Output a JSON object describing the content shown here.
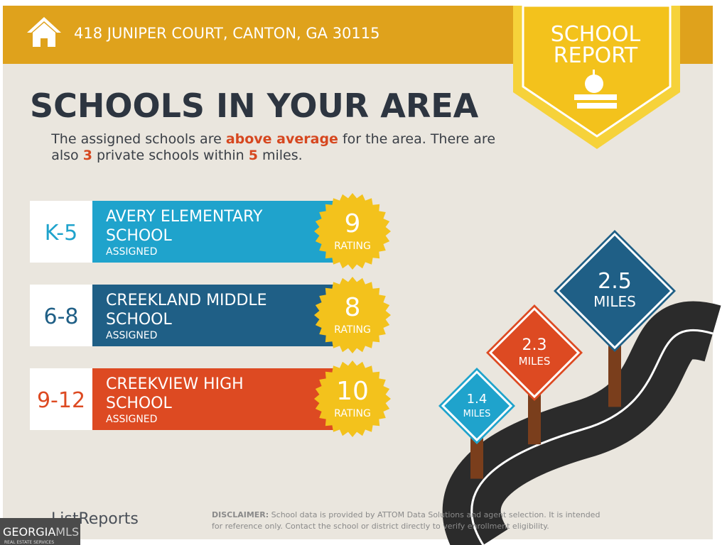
{
  "header": {
    "address": "418 JUNIPER COURT, CANTON, GA 30115"
  },
  "badge": {
    "line1": "SCHOOL",
    "line2": "REPORT"
  },
  "title": "SCHOOLS IN YOUR AREA",
  "subtitle": {
    "line1": [
      "The assigned schools are ",
      "above average",
      " for the area. There are"
    ],
    "line2": [
      "also ",
      "3",
      " private schools within ",
      "5",
      " miles."
    ]
  },
  "schools": [
    {
      "grades": "K-5",
      "name_lines": [
        "AVERY ELEMENTARY",
        "SCHOOL"
      ],
      "status": "ASSIGNED",
      "rating": 9,
      "rating_label": "RATING"
    },
    {
      "grades": "6-8",
      "name_lines": [
        "CREEKLAND MIDDLE",
        "SCHOOL"
      ],
      "status": "ASSIGNED",
      "rating": 8,
      "rating_label": "RATING"
    },
    {
      "grades": "9-12",
      "name_lines": [
        "CREEKVIEW HIGH",
        "SCHOOL"
      ],
      "status": "ASSIGNED",
      "rating": 10,
      "rating_label": "RATING"
    }
  ],
  "distances": [
    {
      "value": 2.5,
      "unit": "MILES"
    },
    {
      "value": 2.3,
      "unit": "MILES"
    },
    {
      "value": 1.4,
      "unit": "MILES"
    }
  ],
  "footer": {
    "logo": "ListReports",
    "disclaimer_label": "DISCLAIMER:",
    "disclaimer_lines": [
      " School data is provided by ATTOM Data Solutions and agent selection. It is intended",
      "for reference only. Contact the school or district directly to verify enrollment eligibility."
    ]
  },
  "watermark": {
    "brand": "GEORGIA",
    "brand_accent": "MLS",
    "tagline": "REAL ESTATE SERVICES"
  }
}
